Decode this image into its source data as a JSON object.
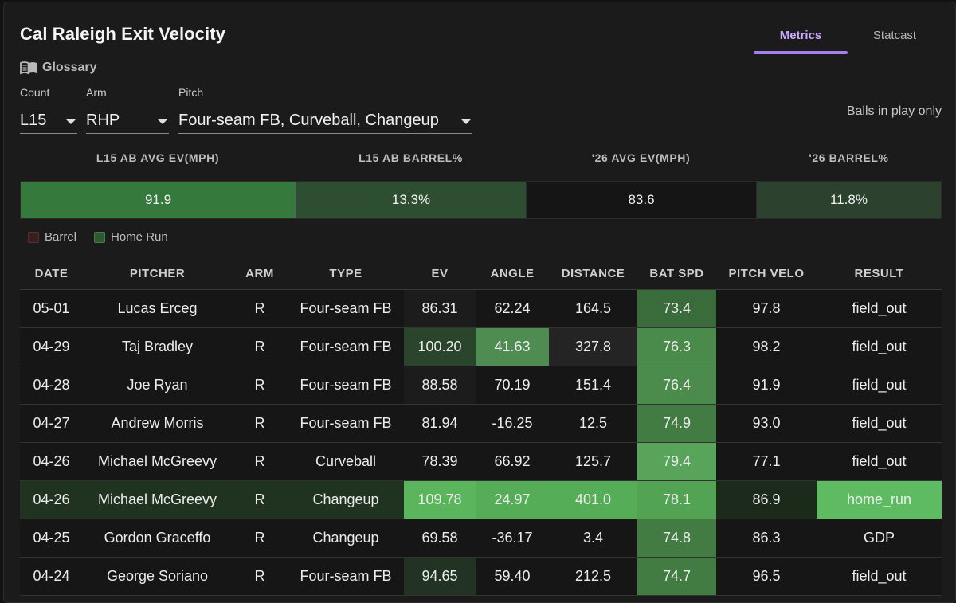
{
  "title": "Cal Raleigh Exit Velocity",
  "glossary": {
    "label": "Glossary",
    "icon": "book-icon"
  },
  "tabs": [
    {
      "label": "Metrics",
      "active": true
    },
    {
      "label": "Statcast",
      "active": false
    }
  ],
  "filters": [
    {
      "label": "Count",
      "value": "L15"
    },
    {
      "label": "Arm",
      "value": "RHP"
    },
    {
      "label": "Pitch",
      "value": "Four-seam FB, Curveball, Changeup"
    }
  ],
  "balls_in_play_note": "Balls in play only",
  "summary": [
    {
      "header": "L15 AB AVG EV(MPH)",
      "value": "91.9",
      "color": "#357a3c"
    },
    {
      "header": "L15 AB BARREL%",
      "value": "13.3%",
      "color": "#2e4e31"
    },
    {
      "header": "'26 AVG EV(MPH)",
      "value": "83.6",
      "color": "#151515"
    },
    {
      "header": "'26 BARREL%",
      "value": "11.8%",
      "color": "#2c422e"
    }
  ],
  "legend": [
    {
      "label": "Barrel",
      "color": "#3a1d1d"
    },
    {
      "label": "Home Run",
      "color": "#2f5a31"
    }
  ],
  "table": {
    "columns": [
      "DATE",
      "PITCHER",
      "ARM",
      "TYPE",
      "EV",
      "ANGLE",
      "DISTANCE",
      "BAT SPD",
      "PITCH VELO",
      "RESULT"
    ],
    "rows": [
      {
        "cells": [
          "05-01",
          "Lucas Erceg",
          "R",
          "Four-seam FB",
          "86.31",
          "62.24",
          "164.5",
          "73.4",
          "97.8",
          "field_out"
        ],
        "row_bg": "#161616",
        "cell_bg": [
          null,
          null,
          null,
          null,
          "#1c1c1c",
          null,
          null,
          "#3a6b3b",
          null,
          null
        ]
      },
      {
        "cells": [
          "04-29",
          "Taj Bradley",
          "R",
          "Four-seam FB",
          "100.20",
          "41.63",
          "327.8",
          "76.3",
          "98.2",
          "field_out"
        ],
        "row_bg": "#161616",
        "cell_bg": [
          null,
          null,
          null,
          null,
          "#2b452c",
          "#4f8c52",
          "#242424",
          "#4a8b4b",
          null,
          null
        ]
      },
      {
        "cells": [
          "04-28",
          "Joe Ryan",
          "R",
          "Four-seam FB",
          "88.58",
          "70.19",
          "151.4",
          "76.4",
          "91.9",
          "field_out"
        ],
        "row_bg": "#161616",
        "cell_bg": [
          null,
          null,
          null,
          null,
          "#1c1c1c",
          null,
          null,
          "#4b8c4c",
          null,
          null
        ]
      },
      {
        "cells": [
          "04-27",
          "Andrew Morris",
          "R",
          "Four-seam FB",
          "81.94",
          "-16.25",
          "12.5",
          "74.9",
          "93.0",
          "field_out"
        ],
        "row_bg": "#161616",
        "cell_bg": [
          null,
          null,
          null,
          null,
          null,
          null,
          null,
          "#427c43",
          null,
          null
        ]
      },
      {
        "cells": [
          "04-26",
          "Michael McGreevy",
          "R",
          "Curveball",
          "78.39",
          "66.92",
          "125.7",
          "79.4",
          "77.1",
          "field_out"
        ],
        "row_bg": "#161616",
        "cell_bg": [
          null,
          null,
          null,
          null,
          null,
          null,
          null,
          "#58a45a",
          null,
          null
        ]
      },
      {
        "cells": [
          "04-26",
          "Michael McGreevy",
          "R",
          "Changeup",
          "109.78",
          "24.97",
          "401.0",
          "78.1",
          "86.9",
          "home_run"
        ],
        "row_bg": "#1f3320",
        "cell_bg": [
          null,
          null,
          null,
          null,
          "#5ab55c",
          "#56ad58",
          "#56ad58",
          "#52a454",
          "#1c2a1c",
          "#5fbb61"
        ]
      },
      {
        "cells": [
          "04-25",
          "Gordon Graceffo",
          "R",
          "Changeup",
          "69.58",
          "-36.17",
          "3.4",
          "74.8",
          "86.3",
          "GDP"
        ],
        "row_bg": "#161616",
        "cell_bg": [
          null,
          null,
          null,
          null,
          null,
          null,
          null,
          "#427c43",
          null,
          null
        ]
      },
      {
        "cells": [
          "04-24",
          "George Soriano",
          "R",
          "Four-seam FB",
          "94.65",
          "59.40",
          "212.5",
          "74.7",
          "96.5",
          "field_out"
        ],
        "row_bg": "#161616",
        "cell_bg": [
          null,
          null,
          null,
          null,
          "#223323",
          null,
          null,
          "#427c43",
          null,
          null
        ]
      }
    ]
  }
}
